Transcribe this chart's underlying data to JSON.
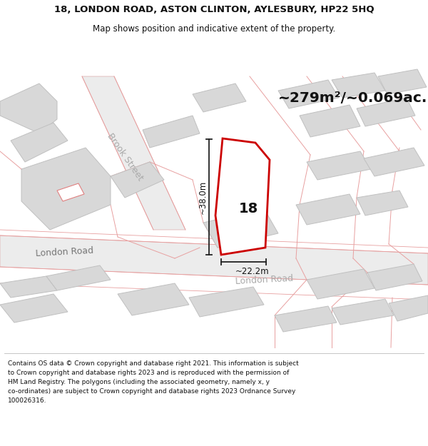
{
  "title_line1": "18, LONDON ROAD, ASTON CLINTON, AYLESBURY, HP22 5HQ",
  "title_line2": "Map shows position and indicative extent of the property.",
  "area_text": "~279m²/~0.069ac.",
  "label_18": "18",
  "dim_vertical": "~38.0m",
  "dim_horizontal": "~22.2m",
  "road_label_left": "London Road",
  "road_label_center": "London Road",
  "road_label_brook": "Brook Street",
  "footer_text": "Contains OS data © Crown copyright and database right 2021. This information is subject\nto Crown copyright and database rights 2023 and is reproduced with the permission of\nHM Land Registry. The polygons (including the associated geometry, namely x, y\nco-ordinates) are subject to Crown copyright and database rights 2023 Ordnance Survey\n100026316.",
  "bg_color": "#f5f5f5",
  "map_bg": "#ffffff",
  "building_fill": "#d8d8d8",
  "building_edge": "#c0c0c0",
  "road_pink": "#e8a0a0",
  "highlight_color": "#cc0000",
  "dim_line_color": "#222222",
  "title_color": "#111111",
  "footer_color": "#111111",
  "road_fill": "#ececec",
  "road_edge": "#d8a8a8"
}
